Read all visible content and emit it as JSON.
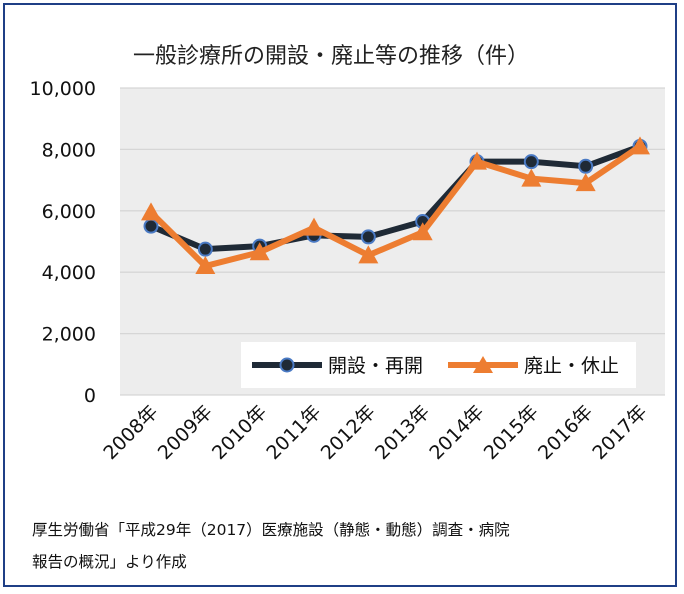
{
  "chart_data": {
    "type": "line",
    "title": "一般診療所の開設・廃止等の推移（件）",
    "categories": [
      "2008年",
      "2009年",
      "2010年",
      "2011年",
      "2012年",
      "2013年",
      "2014年",
      "2015年",
      "2016年",
      "2017年"
    ],
    "series": [
      {
        "name": "開設・再開",
        "color": "#1f2a36",
        "marker": "circle",
        "values": [
          5500,
          4750,
          4850,
          5200,
          5150,
          5650,
          7600,
          7600,
          7450,
          8100
        ]
      },
      {
        "name": "廃止・休止",
        "color": "#ed7d31",
        "marker": "triangle",
        "values": [
          5950,
          4200,
          4650,
          5450,
          4550,
          5300,
          7600,
          7050,
          6900,
          8100
        ]
      }
    ],
    "y_ticks": [
      "0",
      "2,000",
      "4,000",
      "6,000",
      "8,000",
      "10,000"
    ],
    "ylim": [
      0,
      10000
    ],
    "grid": true,
    "legend_position": "bottom-right",
    "plot_background": "#ededed"
  },
  "source_lines": [
    "厚生労働省「平成29年（2017）医療施設（静態・動態）調査・病院",
    "報告の概況」より作成"
  ]
}
